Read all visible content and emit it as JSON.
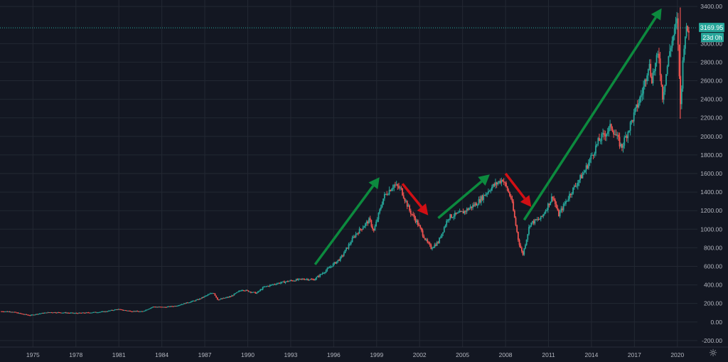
{
  "colors": {
    "background": "#131722",
    "grid": "#232833",
    "axis_text": "#b2b5be",
    "up_candle": "#26a69a",
    "down_candle": "#ef5350",
    "price_line": "#26a69a",
    "arrow_up": "#0c8a3e",
    "arrow_down": "#d10f14"
  },
  "icons": {
    "settings": "gear-icon"
  },
  "price_label": {
    "value": "3169.95",
    "countdown": "23d 0h"
  },
  "chart_data": {
    "type": "candlestick",
    "title": "",
    "xlabel": "",
    "ylabel": "",
    "x_tick_labels": [
      "1975",
      "1978",
      "1981",
      "1984",
      "1987",
      "1990",
      "1993",
      "1996",
      "1999",
      "2002",
      "2005",
      "2008",
      "2011",
      "2014",
      "2017",
      "2020"
    ],
    "y_tick_labels": [
      "-200.00",
      "0.00",
      "200.00",
      "400.00",
      "600.00",
      "800.00",
      "1000.00",
      "1200.00",
      "1400.00",
      "1600.00",
      "1800.00",
      "2000.00",
      "2200.00",
      "2400.00",
      "2600.00",
      "2800.00",
      "3000.00",
      "3400.00"
    ],
    "ylim": [
      -270,
      3470
    ],
    "xlim": [
      1972.7,
      2021.4
    ],
    "grid": true,
    "last_price": 3169.95,
    "price_series": [
      [
        1972.8,
        115
      ],
      [
        1973.5,
        112
      ],
      [
        1974.3,
        85
      ],
      [
        1974.8,
        72
      ],
      [
        1975.5,
        92
      ],
      [
        1976.2,
        105
      ],
      [
        1977.0,
        102
      ],
      [
        1978.0,
        95
      ],
      [
        1979.0,
        102
      ],
      [
        1980.0,
        112
      ],
      [
        1980.9,
        138
      ],
      [
        1981.7,
        120
      ],
      [
        1982.6,
        112
      ],
      [
        1983.4,
        165
      ],
      [
        1984.2,
        160
      ],
      [
        1985.0,
        175
      ],
      [
        1985.8,
        210
      ],
      [
        1986.5,
        240
      ],
      [
        1987.6,
        320
      ],
      [
        1987.9,
        240
      ],
      [
        1988.8,
        275
      ],
      [
        1989.6,
        350
      ],
      [
        1990.6,
        310
      ],
      [
        1991.1,
        375
      ],
      [
        1992.0,
        415
      ],
      [
        1993.0,
        445
      ],
      [
        1994.0,
        465
      ],
      [
        1994.6,
        455
      ],
      [
        1995.5,
        560
      ],
      [
        1996.5,
        690
      ],
      [
        1997.5,
        940
      ],
      [
        1998.5,
        1100
      ],
      [
        1998.8,
        980
      ],
      [
        1999.5,
        1350
      ],
      [
        2000.2,
        1480
      ],
      [
        2000.7,
        1430
      ],
      [
        2001.3,
        1200
      ],
      [
        2001.8,
        1080
      ],
      [
        2002.5,
        860
      ],
      [
        2002.8,
        800
      ],
      [
        2003.3,
        860
      ],
      [
        2004.0,
        1130
      ],
      [
        2005.0,
        1180
      ],
      [
        2006.0,
        1280
      ],
      [
        2007.0,
        1450
      ],
      [
        2007.8,
        1540
      ],
      [
        2008.4,
        1330
      ],
      [
        2008.9,
        880
      ],
      [
        2009.2,
        720
      ],
      [
        2009.7,
        1060
      ],
      [
        2010.5,
        1120
      ],
      [
        2011.3,
        1360
      ],
      [
        2011.7,
        1150
      ],
      [
        2012.5,
        1380
      ],
      [
        2013.5,
        1620
      ],
      [
        2014.5,
        1950
      ],
      [
        2015.4,
        2110
      ],
      [
        2016.1,
        1880
      ],
      [
        2016.9,
        2200
      ],
      [
        2017.6,
        2500
      ],
      [
        2018.0,
        2800
      ],
      [
        2018.2,
        2620
      ],
      [
        2018.7,
        2900
      ],
      [
        2018.95,
        2420
      ],
      [
        2019.5,
        2950
      ],
      [
        2020.0,
        3250
      ],
      [
        2020.2,
        2300
      ],
      [
        2020.5,
        3100
      ],
      [
        2020.85,
        3169.95
      ]
    ],
    "trend_arrows": [
      {
        "direction": "up",
        "from": [
          1994.7,
          620
        ],
        "to": [
          1999.2,
          1560
        ]
      },
      {
        "direction": "down",
        "from": [
          2000.8,
          1490
        ],
        "to": [
          2002.6,
          1150
        ]
      },
      {
        "direction": "up",
        "from": [
          2003.3,
          1120
        ],
        "to": [
          2006.9,
          1590
        ]
      },
      {
        "direction": "down",
        "from": [
          2008.0,
          1600
        ],
        "to": [
          2009.8,
          1240
        ]
      },
      {
        "direction": "up",
        "from": [
          2009.3,
          1100
        ],
        "to": [
          2018.9,
          3380
        ]
      }
    ]
  }
}
